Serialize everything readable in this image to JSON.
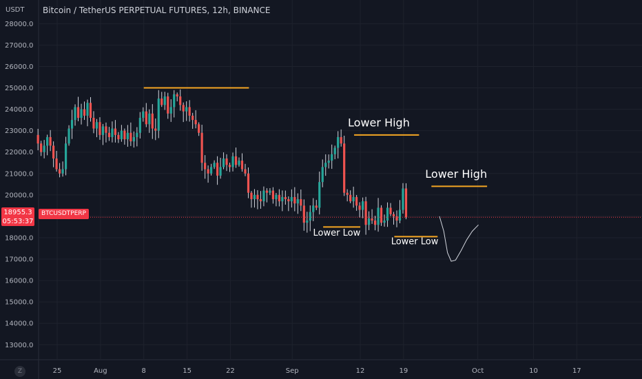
{
  "header": {
    "currency": "USDT",
    "title": "Bitcoin / TetherUS PERPETUAL FUTURES, 12h, BINANCE"
  },
  "price_tag": {
    "price": "18955.3",
    "countdown": "05:53:37"
  },
  "symbol_tag": "BTCUSDTPERP",
  "timezone_button": "Z",
  "colors": {
    "background": "#131722",
    "up": "#26a69a",
    "down": "#ef5350",
    "level_line": "#f5a623",
    "price_line": "#f23645"
  },
  "chart_data": {
    "type": "candlestick",
    "title": "Bitcoin / TetherUS PERPETUAL FUTURES, 12h, BINANCE",
    "ylabel": "USDT",
    "ylim": [
      12300,
      28300
    ],
    "y_ticks": [
      "28000.0",
      "27000.0",
      "26000.0",
      "25000.0",
      "24000.0",
      "23000.0",
      "22000.0",
      "21000.0",
      "20000.0",
      "19000.0",
      "18000.0",
      "17000.0",
      "16000.0",
      "15000.0",
      "14000.0",
      "13000.0"
    ],
    "x_ticks": [
      {
        "label": "25",
        "day": 25
      },
      {
        "label": "Aug",
        "day": 32
      },
      {
        "label": "8",
        "day": 39
      },
      {
        "label": "15",
        "day": 46
      },
      {
        "label": "22",
        "day": 53
      },
      {
        "label": "Sep",
        "day": 63
      },
      {
        "label": "12",
        "day": 74
      },
      {
        "label": "19",
        "day": 81
      },
      {
        "label": "Oct",
        "day": 93
      },
      {
        "label": "10",
        "day": 102
      },
      {
        "label": "17",
        "day": 109
      }
    ],
    "close_series": [
      22800,
      22400,
      22000,
      22300,
      22700,
      22300,
      21700,
      21200,
      21000,
      21200,
      22400,
      23100,
      23500,
      24100,
      23600,
      24000,
      23700,
      24300,
      23600,
      23100,
      23400,
      22800,
      23200,
      22900,
      22700,
      23100,
      22800,
      22600,
      23000,
      22600,
      22900,
      22500,
      22700,
      22900,
      23600,
      23900,
      23300,
      23800,
      23100,
      23000,
      24500,
      24200,
      24600,
      23800,
      24100,
      24700,
      24600,
      24200,
      23900,
      24100,
      23700,
      23500,
      23300,
      22900,
      21500,
      21200,
      21000,
      21300,
      21500,
      20900,
      21300,
      21700,
      21400,
      21300,
      21800,
      21400,
      21600,
      21200,
      21000,
      20100,
      19800,
      20000,
      19800,
      19700,
      20200,
      20100,
      20200,
      19800,
      20000,
      19700,
      19900,
      19800,
      19700,
      19900,
      19600,
      19800,
      19500,
      18700,
      18800,
      19200,
      19500,
      19400,
      20600,
      21300,
      21500,
      21600,
      21900,
      22200,
      22700,
      22400,
      20100,
      20000,
      19700,
      19900,
      19500,
      19300,
      19700,
      18600,
      18900,
      18800,
      18600,
      19400,
      18700,
      18800,
      19400,
      19100,
      19000,
      18800,
      19300,
      20300,
      18955.3
    ],
    "horizontal_levels": [
      {
        "from_day": 39.0,
        "to_day": 56.0,
        "price": 25000
      },
      {
        "from_day": 73.0,
        "to_day": 83.5,
        "price": 22800
      },
      {
        "from_day": 85.5,
        "to_day": 94.5,
        "price": 20400
      },
      {
        "from_day": 68.0,
        "to_day": 74.0,
        "price": 18500
      },
      {
        "from_day": 79.5,
        "to_day": 86.5,
        "price": 18050
      }
    ],
    "current_price": 18955.3,
    "projection": [
      {
        "day": 86.8,
        "price": 19000
      },
      {
        "day": 87.5,
        "price": 18300
      },
      {
        "day": 88.1,
        "price": 17300
      },
      {
        "day": 88.7,
        "price": 16900
      },
      {
        "day": 89.4,
        "price": 16950
      },
      {
        "day": 90.3,
        "price": 17400
      },
      {
        "day": 91.2,
        "price": 17900
      },
      {
        "day": 92.1,
        "price": 18300
      },
      {
        "day": 93.1,
        "price": 18600
      }
    ],
    "annotations": [
      {
        "text": "Lower High",
        "day": 77.0,
        "price": 23200,
        "size": 16
      },
      {
        "text": "Lower High",
        "day": 89.5,
        "price": 20800,
        "size": 16
      },
      {
        "text": "Lower Low",
        "day": 70.2,
        "price": 18100,
        "size": 13
      },
      {
        "text": "Lower Low",
        "day": 82.8,
        "price": 17700,
        "size": 13
      }
    ],
    "grid": true
  }
}
